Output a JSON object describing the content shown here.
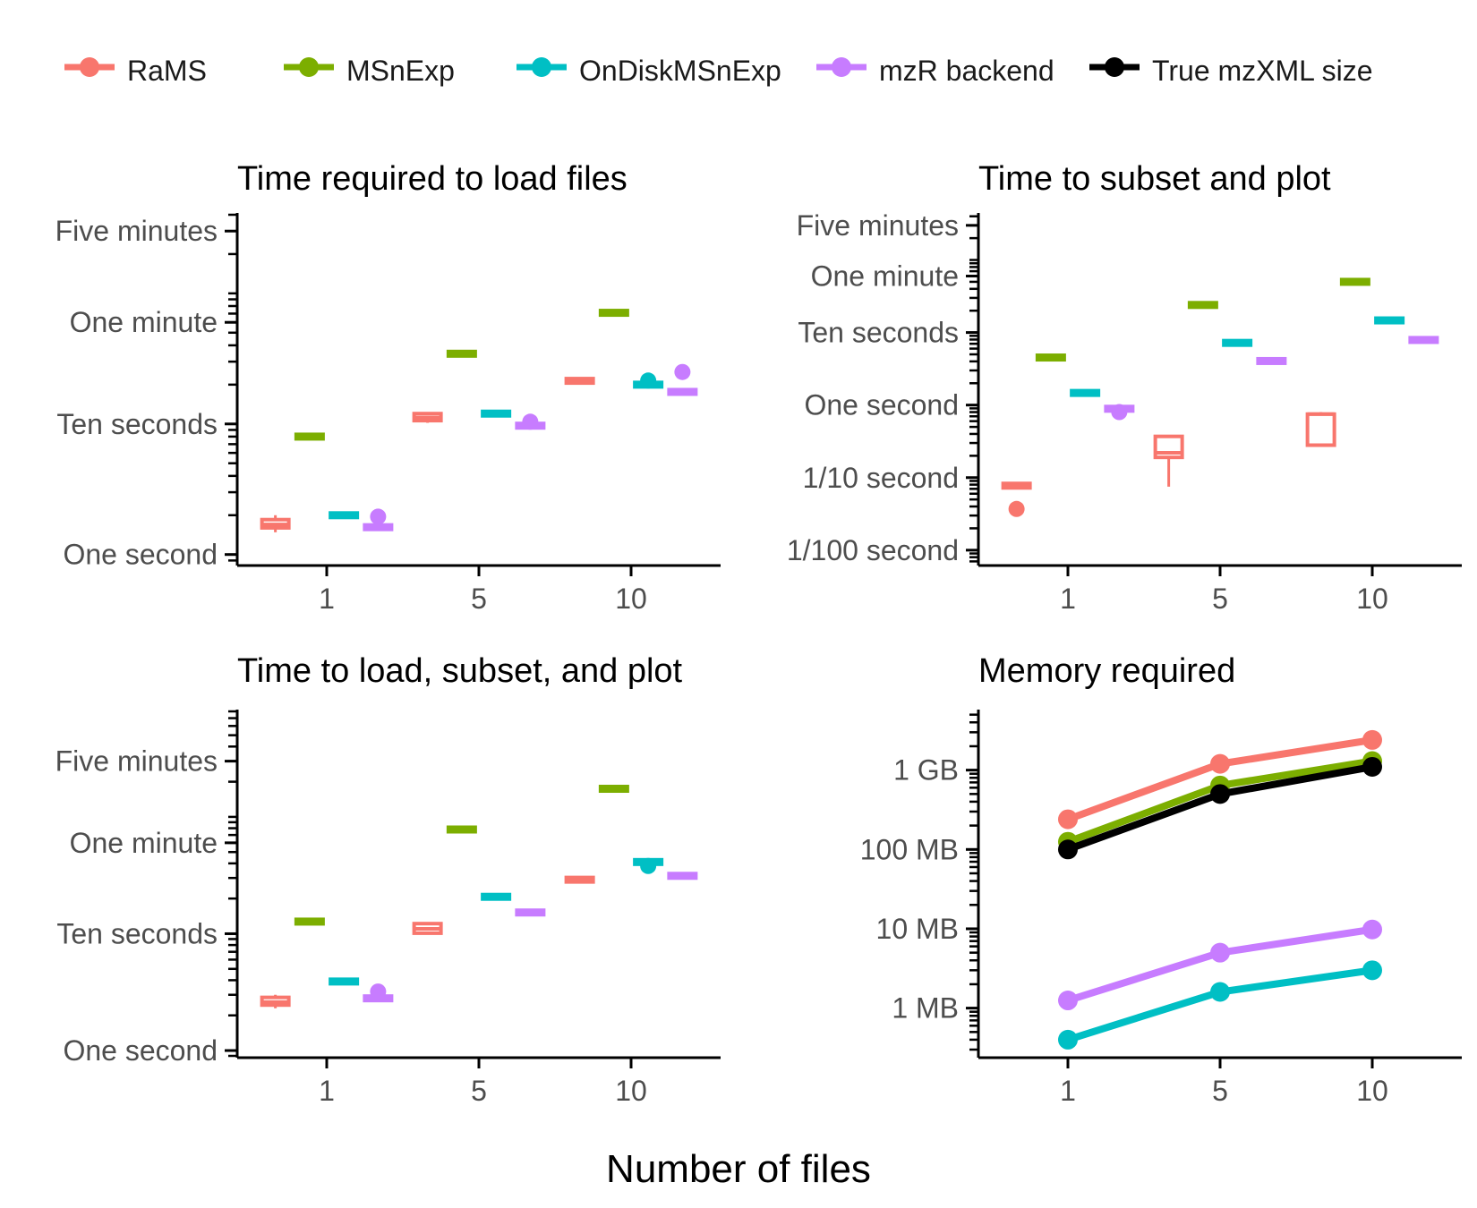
{
  "colors": {
    "RaMS": "#F8766D",
    "MSnExp": "#7CAE00",
    "OnDiskMSnExp": "#00BFC4",
    "mzR backend": "#C77CFF",
    "True mzXML size": "#000000"
  },
  "legend": [
    {
      "key": "RaMS",
      "label": "RaMS"
    },
    {
      "key": "MSnExp",
      "label": "MSnExp"
    },
    {
      "key": "OnDiskMSnExp",
      "label": "OnDiskMSnExp"
    },
    {
      "key": "mzR backend",
      "label": "mzR backend"
    },
    {
      "key": "True mzXML size",
      "label": "True mzXML size"
    }
  ],
  "xlabel": "Number of files",
  "chart_data": [
    {
      "type": "box",
      "title": "Time required to load files",
      "x_categories": [
        "1",
        "5",
        "10"
      ],
      "y_scale": "log",
      "ylim": [
        0.85,
        400
      ],
      "yticks": [
        {
          "value": 1,
          "label": "One second"
        },
        {
          "value": 10,
          "label": "Ten seconds"
        },
        {
          "value": 60,
          "label": "One minute"
        },
        {
          "value": 300,
          "label": "Five minutes"
        }
      ],
      "series": [
        {
          "name": "RaMS",
          "boxes": [
            {
              "x": "1",
              "min": 1.48,
              "q1": 1.6,
              "median": 1.7,
              "q3": 1.85,
              "max": 2.0,
              "outliers": []
            },
            {
              "x": "5",
              "min": 10.2,
              "q1": 10.6,
              "median": 11.2,
              "q3": 12.0,
              "max": 12.2,
              "outliers": []
            },
            {
              "x": "10",
              "min": 20.5,
              "q1": 20.8,
              "median": 21.2,
              "q3": 22.0,
              "max": 22.2,
              "outliers": []
            }
          ]
        },
        {
          "name": "MSnExp",
          "boxes": [
            {
              "x": "1",
              "min": 7.7,
              "q1": 7.85,
              "median": 8.0,
              "q3": 8.15,
              "max": 8.3,
              "outliers": []
            },
            {
              "x": "5",
              "min": 33,
              "q1": 33.5,
              "median": 34.5,
              "q3": 35.5,
              "max": 36,
              "outliers": []
            },
            {
              "x": "10",
              "min": 69,
              "q1": 70,
              "median": 71,
              "q3": 72,
              "max": 73,
              "outliers": []
            }
          ]
        },
        {
          "name": "OnDiskMSnExp",
          "boxes": [
            {
              "x": "1",
              "min": 1.9,
              "q1": 1.95,
              "median": 2.0,
              "q3": 2.05,
              "max": 2.1,
              "outliers": []
            },
            {
              "x": "5",
              "min": 11.5,
              "q1": 11.7,
              "median": 12.0,
              "q3": 12.3,
              "max": 12.5,
              "outliers": []
            },
            {
              "x": "10",
              "min": 19.2,
              "q1": 19.5,
              "median": 20.0,
              "q3": 20.5,
              "max": 20.8,
              "outliers": [
                21.5
              ]
            }
          ]
        },
        {
          "name": "mzR backend",
          "boxes": [
            {
              "x": "1",
              "min": 1.55,
              "q1": 1.58,
              "median": 1.62,
              "q3": 1.66,
              "max": 1.7,
              "outliers": [
                1.95
              ]
            },
            {
              "x": "5",
              "min": 9.4,
              "q1": 9.5,
              "median": 9.7,
              "q3": 9.9,
              "max": 10.0,
              "outliers": [
                10.4
              ]
            },
            {
              "x": "10",
              "min": 17.0,
              "q1": 17.2,
              "median": 17.6,
              "q3": 18.0,
              "max": 18.2,
              "outliers": [
                25
              ]
            }
          ]
        }
      ]
    },
    {
      "type": "box",
      "title": "Time to subset and plot",
      "x_categories": [
        "1",
        "5",
        "10"
      ],
      "y_scale": "log",
      "ylim": [
        0.0065,
        420
      ],
      "yticks": [
        {
          "value": 0.01,
          "label": "1/100 second"
        },
        {
          "value": 0.1,
          "label": "1/10 second"
        },
        {
          "value": 1,
          "label": "One second"
        },
        {
          "value": 10,
          "label": "Ten seconds"
        },
        {
          "value": 60,
          "label": "One minute"
        },
        {
          "value": 300,
          "label": "Five minutes"
        }
      ],
      "series": [
        {
          "name": "RaMS",
          "boxes": [
            {
              "x": "1",
              "min": 0.072,
              "q1": 0.074,
              "median": 0.078,
              "q3": 0.081,
              "max": 0.083,
              "outliers": [
                0.037
              ]
            },
            {
              "x": "5",
              "min": 0.075,
              "q1": 0.19,
              "median": 0.22,
              "q3": 0.37,
              "max": 0.37,
              "outliers": []
            },
            {
              "x": "10",
              "min": 0.28,
              "q1": 0.28,
              "median": 0.75,
              "q3": 0.75,
              "max": 0.8,
              "outliers": []
            }
          ]
        },
        {
          "name": "MSnExp",
          "boxes": [
            {
              "x": "1",
              "min": 4.3,
              "q1": 4.4,
              "median": 4.5,
              "q3": 4.65,
              "max": 4.8,
              "outliers": []
            },
            {
              "x": "5",
              "min": 22,
              "q1": 23,
              "median": 24,
              "q3": 25,
              "max": 26,
              "outliers": []
            },
            {
              "x": "10",
              "min": 46,
              "q1": 48,
              "median": 50,
              "q3": 52,
              "max": 54,
              "outliers": []
            }
          ]
        },
        {
          "name": "OnDiskMSnExp",
          "boxes": [
            {
              "x": "1",
              "min": 1.4,
              "q1": 1.43,
              "median": 1.47,
              "q3": 1.51,
              "max": 1.55,
              "outliers": []
            },
            {
              "x": "5",
              "min": 6.9,
              "q1": 7.0,
              "median": 7.2,
              "q3": 7.4,
              "max": 7.5,
              "outliers": []
            },
            {
              "x": "10",
              "min": 14.0,
              "q1": 14.3,
              "median": 14.7,
              "q3": 15.1,
              "max": 15.4,
              "outliers": []
            }
          ]
        },
        {
          "name": "mzR backend",
          "boxes": [
            {
              "x": "1",
              "min": 0.84,
              "q1": 0.86,
              "median": 0.89,
              "q3": 0.92,
              "max": 0.95,
              "outliers": [
                0.8
              ]
            },
            {
              "x": "5",
              "min": 3.8,
              "q1": 3.9,
              "median": 4.05,
              "q3": 4.2,
              "max": 4.3,
              "outliers": []
            },
            {
              "x": "10",
              "min": 7.4,
              "q1": 7.6,
              "median": 7.9,
              "q3": 8.2,
              "max": 8.4,
              "outliers": []
            }
          ]
        }
      ]
    },
    {
      "type": "box",
      "title": "Time to load, subset, and plot",
      "x_categories": [
        "1",
        "5",
        "10"
      ],
      "y_scale": "log",
      "ylim": [
        0.9,
        800
      ],
      "yticks": [
        {
          "value": 1,
          "label": "One second"
        },
        {
          "value": 10,
          "label": "Ten seconds"
        },
        {
          "value": 60,
          "label": "One minute"
        },
        {
          "value": 300,
          "label": "Five minutes"
        }
      ],
      "series": [
        {
          "name": "RaMS",
          "boxes": [
            {
              "x": "1",
              "min": 2.3,
              "q1": 2.45,
              "median": 2.6,
              "q3": 2.85,
              "max": 3.0,
              "outliers": []
            },
            {
              "x": "5",
              "min": 10.0,
              "q1": 10.1,
              "median": 11.0,
              "q3": 12.2,
              "max": 12.4,
              "outliers": []
            },
            {
              "x": "10",
              "min": 27,
              "q1": 28,
              "median": 29,
              "q3": 30,
              "max": 30.5,
              "outliers": []
            }
          ]
        },
        {
          "name": "MSnExp",
          "boxes": [
            {
              "x": "1",
              "min": 12.2,
              "q1": 12.4,
              "median": 12.7,
              "q3": 13.0,
              "max": 13.2,
              "outliers": []
            },
            {
              "x": "5",
              "min": 75,
              "q1": 76.5,
              "median": 78,
              "q3": 79.5,
              "max": 81,
              "outliers": []
            },
            {
              "x": "10",
              "min": 168,
              "q1": 171,
              "median": 174,
              "q3": 177,
              "max": 180,
              "outliers": []
            }
          ]
        },
        {
          "name": "OnDiskMSnExp",
          "boxes": [
            {
              "x": "1",
              "min": 3.7,
              "q1": 3.8,
              "median": 3.9,
              "q3": 4.0,
              "max": 4.1,
              "outliers": []
            },
            {
              "x": "5",
              "min": 19.8,
              "q1": 20.2,
              "median": 20.7,
              "q3": 21.2,
              "max": 21.6,
              "outliers": []
            },
            {
              "x": "10",
              "min": 39.5,
              "q1": 40.2,
              "median": 41,
              "q3": 42,
              "max": 43,
              "outliers": [
                38
              ]
            }
          ]
        },
        {
          "name": "mzR backend",
          "boxes": [
            {
              "x": "1",
              "min": 2.65,
              "q1": 2.72,
              "median": 2.8,
              "q3": 2.88,
              "max": 2.95,
              "outliers": [
                3.2
              ]
            },
            {
              "x": "5",
              "min": 14.5,
              "q1": 14.8,
              "median": 15.2,
              "q3": 15.6,
              "max": 15.9,
              "outliers": []
            },
            {
              "x": "10",
              "min": 30,
              "q1": 30.6,
              "median": 31.3,
              "q3": 32,
              "max": 32.6,
              "outliers": []
            }
          ]
        }
      ]
    },
    {
      "type": "line",
      "title": "Memory required",
      "x_categories": [
        "1",
        "5",
        "10"
      ],
      "y_scale": "log",
      "y_unit": "MB",
      "ylim": [
        0.25,
        5500
      ],
      "yticks": [
        {
          "value": 1,
          "label": "1 MB"
        },
        {
          "value": 10,
          "label": "10 MB"
        },
        {
          "value": 100,
          "label": "100 MB"
        },
        {
          "value": 1000,
          "label": "1 GB"
        }
      ],
      "series": [
        {
          "name": "RaMS",
          "values": [
            240,
            1200,
            2400
          ]
        },
        {
          "name": "MSnExp",
          "values": [
            125,
            640,
            1300
          ]
        },
        {
          "name": "True mzXML size",
          "values": [
            100,
            500,
            1100
          ]
        },
        {
          "name": "mzR backend",
          "values": [
            1.25,
            5.0,
            9.8
          ]
        },
        {
          "name": "OnDiskMSnExp",
          "values": [
            0.4,
            1.6,
            3.0
          ]
        }
      ]
    }
  ]
}
